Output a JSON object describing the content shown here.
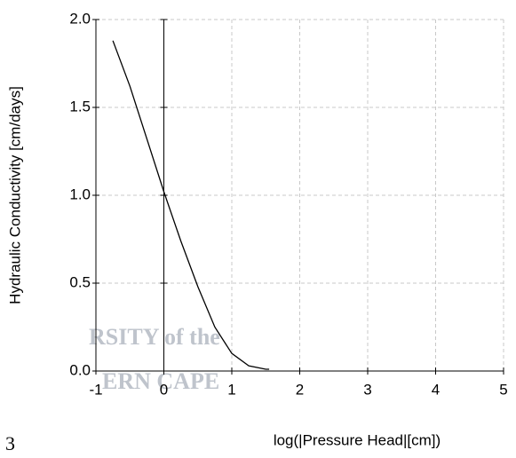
{
  "chart_data": {
    "type": "line",
    "xlabel": "log(|Pressure Head|[cm])",
    "ylabel": "Hydraulic Conductivity [cm/days]",
    "x": [
      -0.75,
      -0.5,
      -0.25,
      0,
      0.25,
      0.5,
      0.75,
      1,
      1.25,
      1.5,
      1.55
    ],
    "series": [
      {
        "color": "#000000",
        "values": [
          1.88,
          1.62,
          1.32,
          1.02,
          0.74,
          0.48,
          0.25,
          0.1,
          0.03,
          0.01,
          0.01
        ]
      }
    ],
    "xlim": [
      -1,
      5
    ],
    "xticks": [
      -1,
      0,
      1,
      2,
      3,
      4,
      5
    ],
    "ylim": [
      0,
      2
    ],
    "yticks": [
      {
        "value": 0,
        "label": "0.0"
      },
      {
        "value": 0.5,
        "label": "0.5"
      },
      {
        "value": 1,
        "label": "1.0"
      },
      {
        "value": 1.5,
        "label": "1.5"
      },
      {
        "value": 2,
        "label": "2.0"
      }
    ],
    "grid": true,
    "zero_line": true
  },
  "watermark": [
    "RSITY of the",
    "ERN CAPE"
  ],
  "page_number": "3"
}
